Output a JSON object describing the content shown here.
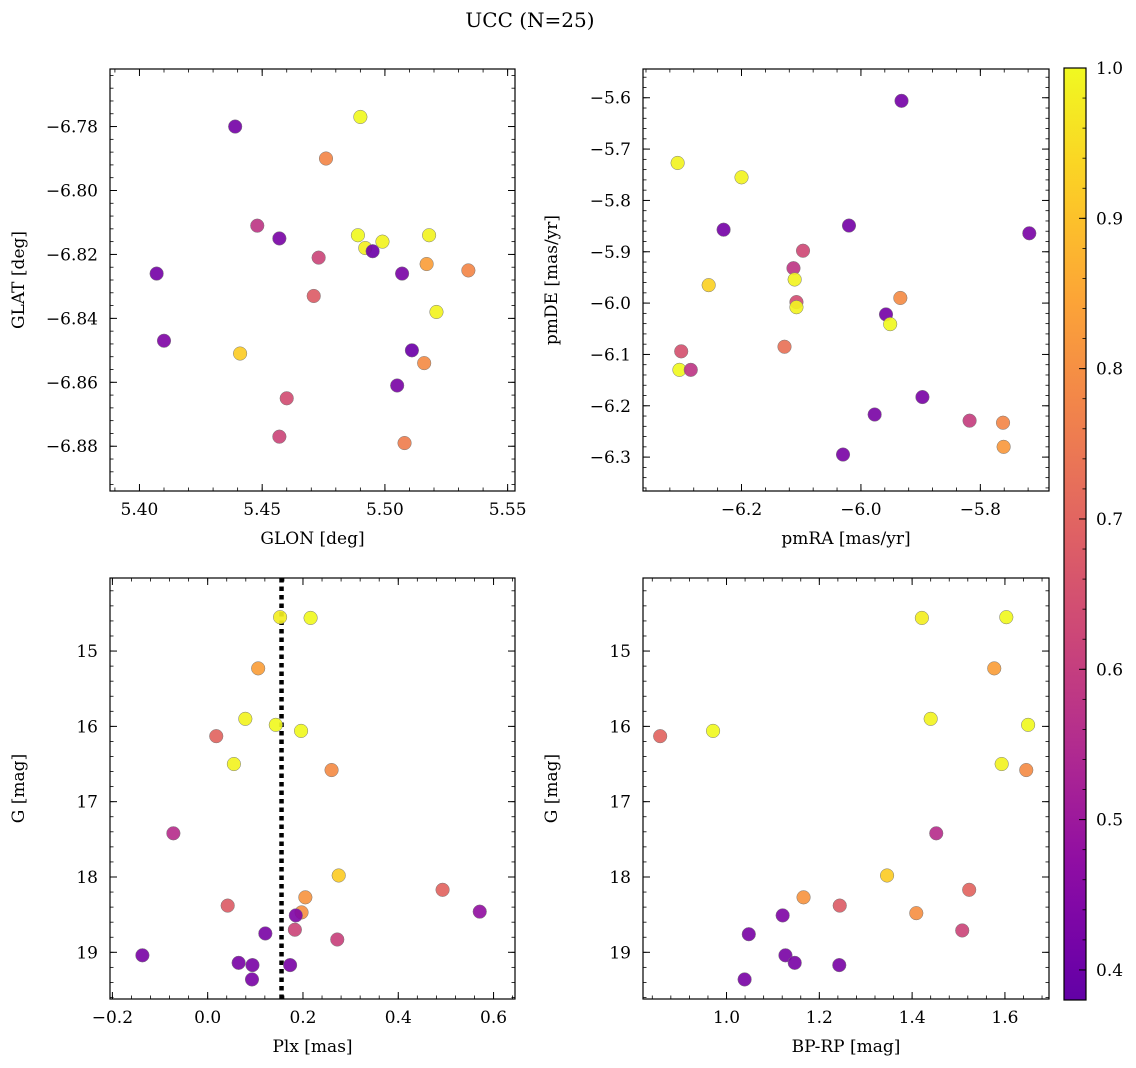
{
  "figure": {
    "title": "UCC (N=25)"
  },
  "colorbar": {
    "range": [
      0.38,
      1.0
    ],
    "ticks": [
      0.4,
      0.5,
      0.6,
      0.7,
      0.8,
      0.9,
      1.0
    ],
    "colormap": "plasma"
  },
  "chart_data": [
    {
      "type": "scatter",
      "xlabel": "GLON [deg]",
      "ylabel": "GLAT [deg]",
      "xlim": [
        5.388,
        5.553
      ],
      "ylim": [
        -6.894,
        -6.762
      ],
      "xticks": [
        5.4,
        5.45,
        5.5,
        5.55
      ],
      "yticks": [
        -6.78,
        -6.8,
        -6.82,
        -6.84,
        -6.86,
        -6.88
      ],
      "x_decimals": 2,
      "y_decimals": 2,
      "points": [
        {
          "x": 5.439,
          "y": -6.78,
          "c": 0.42
        },
        {
          "x": 5.49,
          "y": -6.777,
          "c": 1.0
        },
        {
          "x": 5.476,
          "y": -6.79,
          "c": 0.78
        },
        {
          "x": 5.448,
          "y": -6.811,
          "c": 0.58
        },
        {
          "x": 5.457,
          "y": -6.815,
          "c": 0.43
        },
        {
          "x": 5.489,
          "y": -6.814,
          "c": 1.0
        },
        {
          "x": 5.492,
          "y": -6.818,
          "c": 0.98
        },
        {
          "x": 5.495,
          "y": -6.819,
          "c": 0.4
        },
        {
          "x": 5.499,
          "y": -6.816,
          "c": 0.99
        },
        {
          "x": 5.518,
          "y": -6.814,
          "c": 0.99
        },
        {
          "x": 5.473,
          "y": -6.821,
          "c": 0.62
        },
        {
          "x": 5.407,
          "y": -6.826,
          "c": 0.42
        },
        {
          "x": 5.507,
          "y": -6.826,
          "c": 0.43
        },
        {
          "x": 5.517,
          "y": -6.823,
          "c": 0.83
        },
        {
          "x": 5.534,
          "y": -6.825,
          "c": 0.78
        },
        {
          "x": 5.471,
          "y": -6.833,
          "c": 0.68
        },
        {
          "x": 5.521,
          "y": -6.838,
          "c": 0.99
        },
        {
          "x": 5.41,
          "y": -6.847,
          "c": 0.44
        },
        {
          "x": 5.441,
          "y": -6.851,
          "c": 0.92
        },
        {
          "x": 5.511,
          "y": -6.85,
          "c": 0.4
        },
        {
          "x": 5.516,
          "y": -6.854,
          "c": 0.79
        },
        {
          "x": 5.505,
          "y": -6.861,
          "c": 0.43
        },
        {
          "x": 5.46,
          "y": -6.865,
          "c": 0.64
        },
        {
          "x": 5.457,
          "y": -6.877,
          "c": 0.62
        },
        {
          "x": 5.508,
          "y": -6.879,
          "c": 0.76
        }
      ]
    },
    {
      "type": "scatter",
      "xlabel": "pmRA [mas/yr]",
      "ylabel": "pmDE [mas/yr]",
      "xlim": [
        -6.365,
        -5.685
      ],
      "ylim": [
        -6.366,
        -5.544
      ],
      "xticks": [
        -6.2,
        -6.0,
        -5.8
      ],
      "yticks": [
        -5.6,
        -5.7,
        -5.8,
        -5.9,
        -6.0,
        -6.1,
        -6.2,
        -6.3
      ],
      "x_decimals": 1,
      "y_decimals": 1,
      "points": [
        {
          "x": -5.932,
          "y": -5.606,
          "c": 0.42
        },
        {
          "x": -6.307,
          "y": -5.727,
          "c": 0.99
        },
        {
          "x": -6.2,
          "y": -5.755,
          "c": 0.99
        },
        {
          "x": -6.02,
          "y": -5.849,
          "c": 0.42
        },
        {
          "x": -6.23,
          "y": -5.857,
          "c": 0.42
        },
        {
          "x": -5.718,
          "y": -5.864,
          "c": 0.43
        },
        {
          "x": -6.097,
          "y": -5.898,
          "c": 0.63
        },
        {
          "x": -6.113,
          "y": -5.932,
          "c": 0.58
        },
        {
          "x": -6.111,
          "y": -5.954,
          "c": 0.99
        },
        {
          "x": -6.255,
          "y": -5.965,
          "c": 0.93
        },
        {
          "x": -6.108,
          "y": -5.998,
          "c": 0.64
        },
        {
          "x": -6.108,
          "y": -6.008,
          "c": 0.99
        },
        {
          "x": -5.934,
          "y": -5.99,
          "c": 0.79
        },
        {
          "x": -5.958,
          "y": -6.022,
          "c": 0.42
        },
        {
          "x": -5.951,
          "y": -6.041,
          "c": 1.0
        },
        {
          "x": -6.128,
          "y": -6.085,
          "c": 0.73
        },
        {
          "x": -6.301,
          "y": -6.094,
          "c": 0.65
        },
        {
          "x": -6.304,
          "y": -6.13,
          "c": 1.0
        },
        {
          "x": -6.285,
          "y": -6.13,
          "c": 0.58
        },
        {
          "x": -5.897,
          "y": -6.183,
          "c": 0.43
        },
        {
          "x": -5.977,
          "y": -6.217,
          "c": 0.43
        },
        {
          "x": -5.818,
          "y": -6.229,
          "c": 0.6
        },
        {
          "x": -5.762,
          "y": -6.233,
          "c": 0.78
        },
        {
          "x": -5.761,
          "y": -6.28,
          "c": 0.82
        },
        {
          "x": -6.03,
          "y": -6.295,
          "c": 0.43
        }
      ]
    },
    {
      "type": "scatter",
      "xlabel": "Plx [mas]",
      "ylabel": "G [mag]",
      "xlim": [
        -0.205,
        0.645
      ],
      "ylim": [
        19.62,
        14.03
      ],
      "xticks": [
        -0.2,
        0.0,
        0.2,
        0.4,
        0.6
      ],
      "yticks": [
        15,
        16,
        17,
        18,
        19
      ],
      "x_decimals": 1,
      "y_decimals": 0,
      "vline": {
        "x": 0.155,
        "style": "dotted"
      },
      "points": [
        {
          "x": 0.152,
          "y": 14.55,
          "c": 0.98
        },
        {
          "x": 0.216,
          "y": 14.56,
          "c": 1.0
        },
        {
          "x": 0.106,
          "y": 15.23,
          "c": 0.83
        },
        {
          "x": 0.079,
          "y": 15.9,
          "c": 0.99
        },
        {
          "x": 0.143,
          "y": 15.98,
          "c": 1.0
        },
        {
          "x": 0.196,
          "y": 16.06,
          "c": 1.0
        },
        {
          "x": 0.018,
          "y": 16.13,
          "c": 0.7
        },
        {
          "x": 0.055,
          "y": 16.5,
          "c": 0.99
        },
        {
          "x": 0.26,
          "y": 16.58,
          "c": 0.79
        },
        {
          "x": -0.072,
          "y": 17.42,
          "c": 0.56
        },
        {
          "x": 0.275,
          "y": 17.98,
          "c": 0.92
        },
        {
          "x": 0.493,
          "y": 18.17,
          "c": 0.7
        },
        {
          "x": 0.205,
          "y": 18.27,
          "c": 0.81
        },
        {
          "x": 0.042,
          "y": 18.38,
          "c": 0.68
        },
        {
          "x": 0.571,
          "y": 18.46,
          "c": 0.48
        },
        {
          "x": 0.197,
          "y": 18.47,
          "c": 0.8
        },
        {
          "x": 0.185,
          "y": 18.51,
          "c": 0.44
        },
        {
          "x": 0.183,
          "y": 18.7,
          "c": 0.62
        },
        {
          "x": 0.121,
          "y": 18.75,
          "c": 0.43
        },
        {
          "x": 0.272,
          "y": 18.83,
          "c": 0.61
        },
        {
          "x": -0.137,
          "y": 19.04,
          "c": 0.43
        },
        {
          "x": 0.065,
          "y": 19.14,
          "c": 0.43
        },
        {
          "x": 0.094,
          "y": 19.17,
          "c": 0.43
        },
        {
          "x": 0.173,
          "y": 19.17,
          "c": 0.43
        },
        {
          "x": 0.093,
          "y": 19.36,
          "c": 0.43
        }
      ]
    },
    {
      "type": "scatter",
      "xlabel": "BP-RP [mag]",
      "ylabel": "G [mag]",
      "xlim": [
        0.82,
        1.695
      ],
      "ylim": [
        19.62,
        14.03
      ],
      "xticks": [
        1.0,
        1.2,
        1.4,
        1.6
      ],
      "yticks": [
        15,
        16,
        17,
        18,
        19
      ],
      "x_decimals": 1,
      "y_decimals": 0,
      "points": [
        {
          "x": 1.421,
          "y": 14.56,
          "c": 0.98
        },
        {
          "x": 1.603,
          "y": 14.55,
          "c": 1.0
        },
        {
          "x": 1.577,
          "y": 15.23,
          "c": 0.83
        },
        {
          "x": 1.44,
          "y": 15.9,
          "c": 0.99
        },
        {
          "x": 1.65,
          "y": 15.98,
          "c": 1.0
        },
        {
          "x": 0.971,
          "y": 16.06,
          "c": 1.0
        },
        {
          "x": 0.857,
          "y": 16.13,
          "c": 0.7
        },
        {
          "x": 1.593,
          "y": 16.5,
          "c": 0.99
        },
        {
          "x": 1.646,
          "y": 16.58,
          "c": 0.79
        },
        {
          "x": 1.452,
          "y": 17.42,
          "c": 0.56
        },
        {
          "x": 1.346,
          "y": 17.98,
          "c": 0.92
        },
        {
          "x": 1.523,
          "y": 18.17,
          "c": 0.7
        },
        {
          "x": 1.166,
          "y": 18.27,
          "c": 0.81
        },
        {
          "x": 1.244,
          "y": 18.38,
          "c": 0.68
        },
        {
          "x": 1.121,
          "y": 18.51,
          "c": 0.44
        },
        {
          "x": 1.409,
          "y": 18.48,
          "c": 0.8
        },
        {
          "x": 1.508,
          "y": 18.71,
          "c": 0.62
        },
        {
          "x": 1.048,
          "y": 18.76,
          "c": 0.43
        },
        {
          "x": 1.127,
          "y": 19.04,
          "c": 0.43
        },
        {
          "x": 1.147,
          "y": 19.14,
          "c": 0.43
        },
        {
          "x": 1.243,
          "y": 19.17,
          "c": 0.43
        },
        {
          "x": 1.039,
          "y": 19.36,
          "c": 0.43
        }
      ]
    }
  ]
}
